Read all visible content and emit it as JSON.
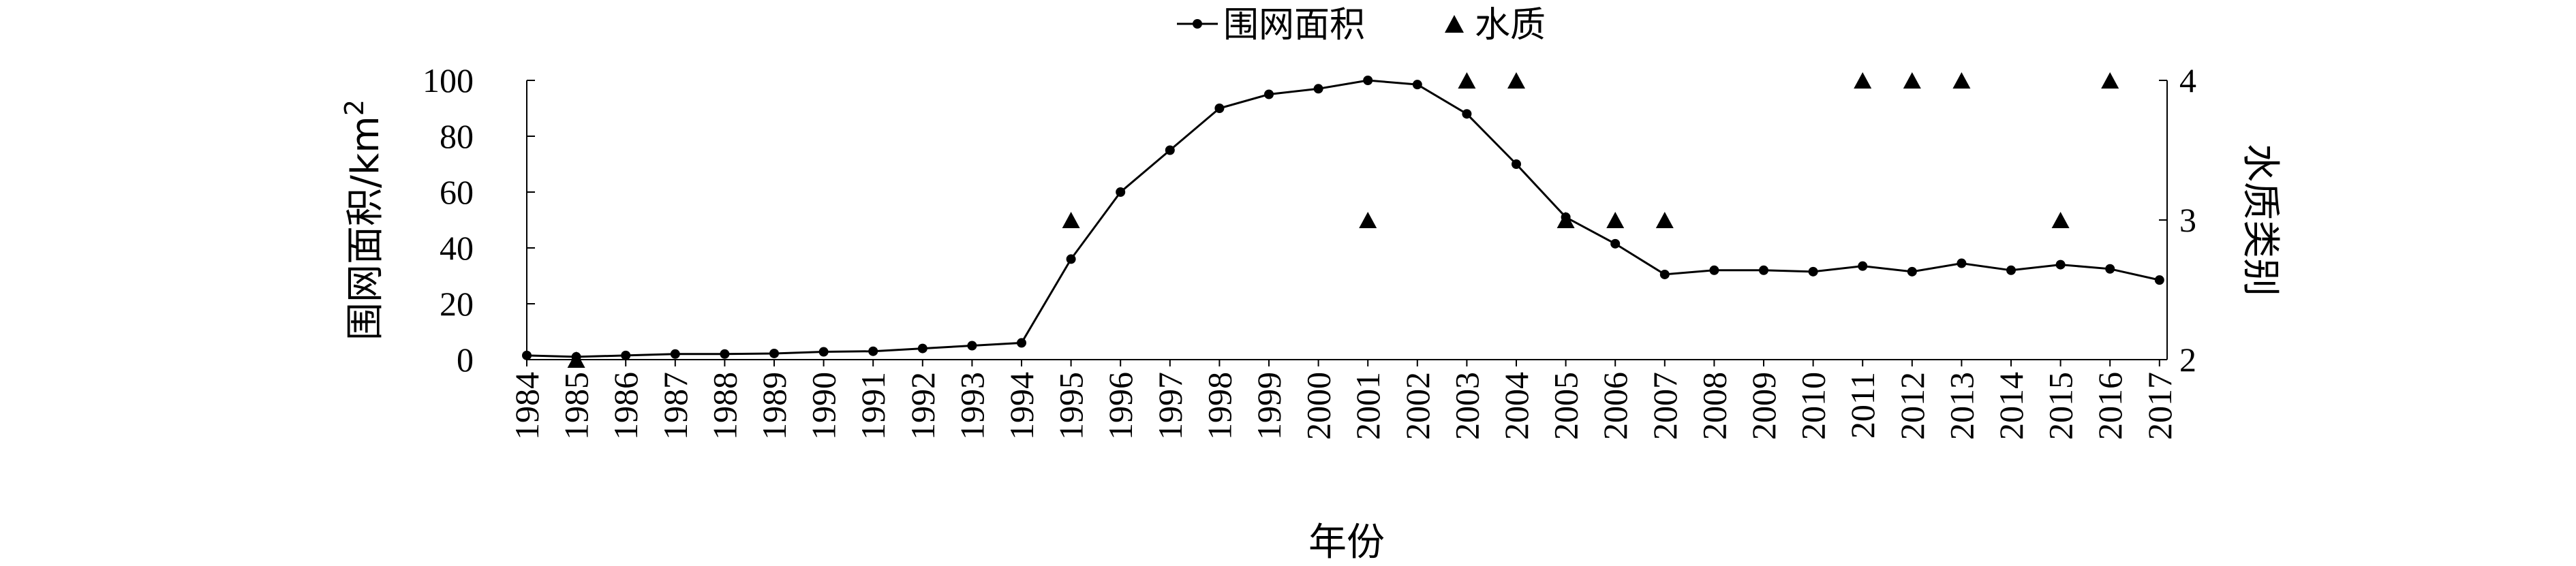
{
  "chart_data": {
    "type": "line",
    "title": "",
    "xlabel": "年份",
    "ylabel": "围网面积/km²",
    "ylabel_base": "围网面积/km",
    "ylabel_sup": "2",
    "y2label": "水质类别",
    "ylim": [
      0,
      100
    ],
    "y2lim": [
      2,
      4
    ],
    "yticks": [
      "0",
      "20",
      "40",
      "60",
      "80",
      "100"
    ],
    "y2ticks": [
      "2",
      "3",
      "4"
    ],
    "legend_position": "top-center",
    "categories": [
      "1984",
      "1985",
      "1986",
      "1987",
      "1988",
      "1989",
      "1990",
      "1991",
      "1992",
      "1993",
      "1994",
      "1995",
      "1996",
      "1997",
      "1998",
      "1999",
      "2000",
      "2001",
      "2002",
      "2003",
      "2004",
      "2005",
      "2006",
      "2007",
      "2008",
      "2009",
      "2010",
      "2011",
      "2012",
      "2013",
      "2014",
      "2015",
      "2016",
      "2017"
    ],
    "series": [
      {
        "name": "围网面积",
        "axis": "left",
        "type": "line",
        "marker": "circle",
        "values": [
          1.5,
          1,
          1.5,
          2,
          2,
          2.2,
          2.8,
          3,
          4,
          5,
          6,
          36,
          60,
          75,
          90,
          95,
          97,
          100,
          98.5,
          88,
          70,
          51,
          41.5,
          30.5,
          32,
          32,
          31.5,
          33.5,
          31.5,
          34.5,
          32,
          34,
          32.5,
          28.5
        ]
      },
      {
        "name": "水质",
        "axis": "right",
        "type": "scatter",
        "marker": "triangle",
        "points": [
          {
            "x": "1985",
            "y": 2
          },
          {
            "x": "1995",
            "y": 3
          },
          {
            "x": "2001",
            "y": 3
          },
          {
            "x": "2003",
            "y": 4
          },
          {
            "x": "2004",
            "y": 4
          },
          {
            "x": "2005",
            "y": 3
          },
          {
            "x": "2006",
            "y": 3
          },
          {
            "x": "2007",
            "y": 3
          },
          {
            "x": "2011",
            "y": 4
          },
          {
            "x": "2012",
            "y": 4
          },
          {
            "x": "2013",
            "y": 4
          },
          {
            "x": "2015",
            "y": 3
          },
          {
            "x": "2016",
            "y": 4
          }
        ]
      }
    ]
  }
}
